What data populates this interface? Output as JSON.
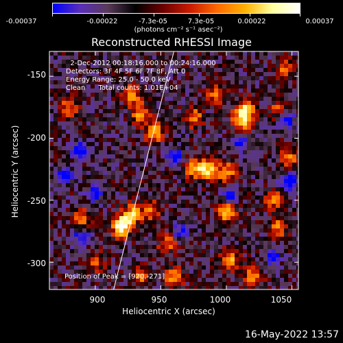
{
  "colorbar": {
    "tick_labels": [
      "-0.00037",
      "-0.00022",
      "-7.3e-05",
      "7.3e-05",
      "0.00022",
      "0.00037"
    ],
    "unit_label": "(photons cm⁻² s⁻¹ asec⁻²)",
    "gradient_colors": [
      "#0000ff",
      "#5a2fb8",
      "#5a3a5a",
      "#000000",
      "#6b0000",
      "#c81b00",
      "#ff6a00",
      "#ffb000",
      "#ffff9f",
      "#ffffff"
    ]
  },
  "chart_data": {
    "type": "heatmap",
    "title": "Reconstructed RHESSI Image",
    "xlabel": "Heliocentric X (arcsec)",
    "ylabel": "Heliocentric Y (arcsec)",
    "xlim": [
      865,
      1055
    ],
    "ylim": [
      -322,
      -130
    ],
    "xticks": [
      900,
      950,
      1000,
      1050
    ],
    "yticks": [
      -150,
      -200,
      -250,
      -300
    ],
    "annotations": [
      "  2-Dec-2012 00:18:16.000 to 00:24:16.000",
      "Detectors: 3F 4F 5F 6F 7F 8F, Att 0",
      "Energy Range: 25.0 - 50.0 keV",
      "Clean      Total counts: 1.01E+04"
    ],
    "peak_label": "Position of Peak = [920,-271]",
    "peak": [
      920,
      -271
    ],
    "limb_line": [
      [
        914,
        -322
      ],
      [
        960,
        -130
      ]
    ],
    "hotspots": [
      [
        920,
        -271,
        2.0
      ],
      [
        928,
        -262,
        1.3
      ],
      [
        942,
        -258,
        0.9
      ],
      [
        985,
        -225,
        1.5
      ],
      [
        1000,
        -228,
        1.2
      ],
      [
        975,
        -225,
        1.0
      ],
      [
        1012,
        -185,
        1.5
      ],
      [
        1015,
        -175,
        1.1
      ],
      [
        945,
        -195,
        1.2
      ],
      [
        935,
        -180,
        1.1
      ],
      [
        928,
        -165,
        1.0
      ],
      [
        975,
        -183,
        1.0
      ],
      [
        992,
        -165,
        0.9
      ],
      [
        1000,
        -260,
        1.2
      ],
      [
        1035,
        -250,
        1.0
      ],
      [
        1040,
        -272,
        0.9
      ],
      [
        1003,
        -298,
        1.1
      ],
      [
        1020,
        -312,
        1.1
      ],
      [
        960,
        -312,
        1.0
      ],
      [
        935,
        -312,
        0.9
      ],
      [
        880,
        -175,
        0.9
      ],
      [
        890,
        -265,
        0.8
      ],
      [
        1040,
        -178,
        0.8
      ],
      [
        1048,
        -215,
        0.9
      ],
      [
        900,
        -300,
        0.8
      ],
      [
        955,
        -285,
        0.8
      ],
      [
        1045,
        -145,
        0.8
      ]
    ],
    "coldspots": [
      [
        888,
        -210,
        1.2
      ],
      [
        877,
        -230,
        1.0
      ],
      [
        890,
        -280,
        1.0
      ],
      [
        1045,
        -185,
        1.2
      ],
      [
        960,
        -215,
        1.0
      ],
      [
        1003,
        -245,
        1.0
      ],
      [
        1010,
        -205,
        0.9
      ],
      [
        1048,
        -235,
        1.1
      ],
      [
        1035,
        -295,
        0.9
      ],
      [
        900,
        -245,
        0.8
      ],
      [
        965,
        -275,
        0.8
      ]
    ]
  },
  "footer": {
    "timestamp": "16-May-2022 13:57"
  }
}
